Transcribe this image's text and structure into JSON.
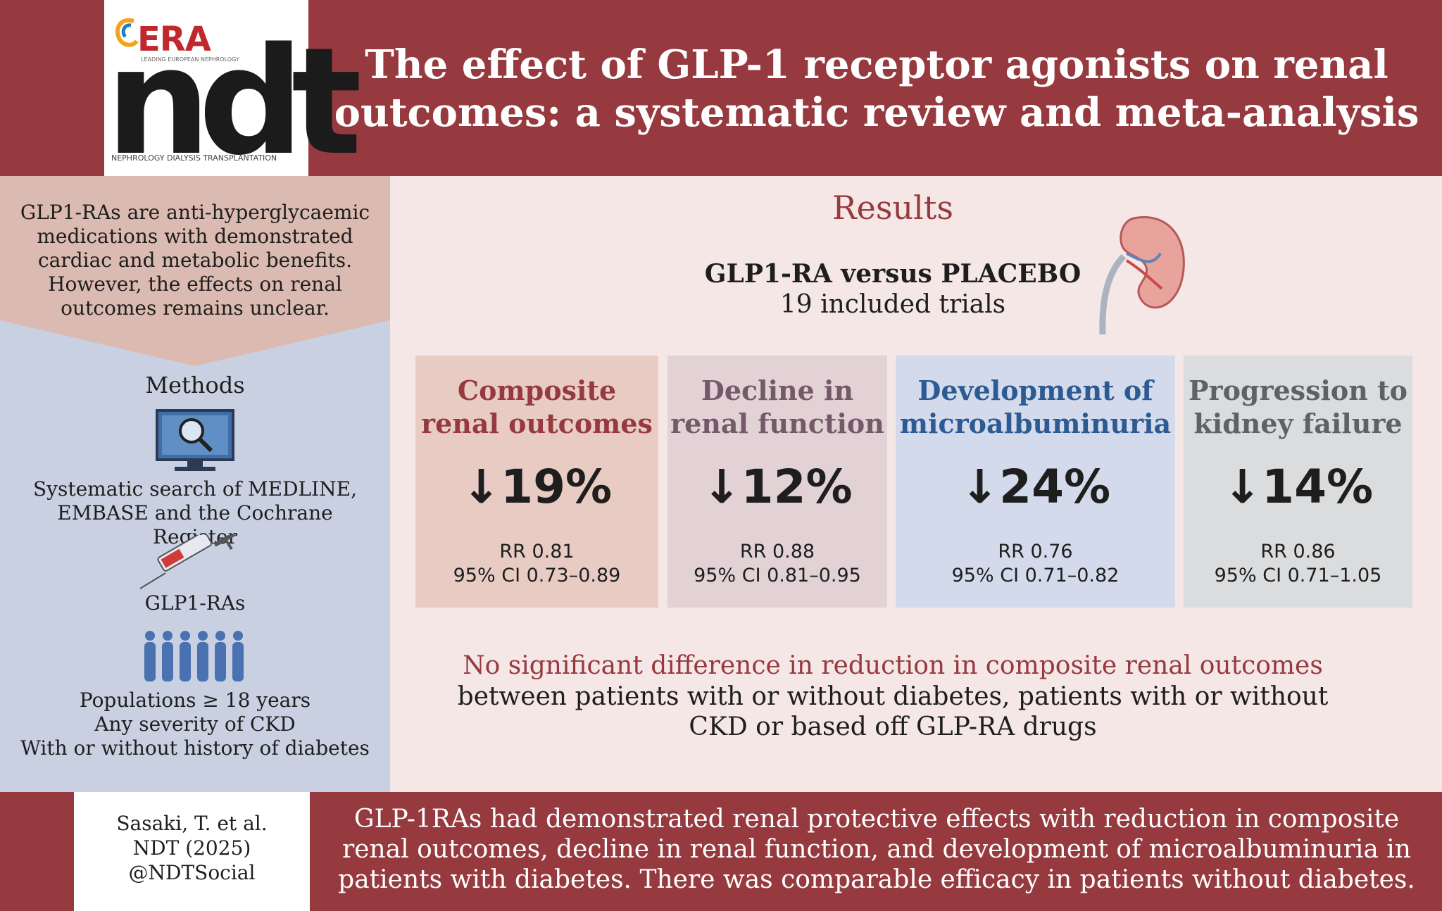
{
  "header": {
    "title": "The effect of GLP-1 receptor agonists on renal outcomes: a systematic review and meta-analysis",
    "logo": {
      "era": "ERA",
      "era_sub": "LEADING EUROPEAN NEPHROLOGY",
      "ndt": "ndt",
      "footer": "NEPHROLOGY DIALYSIS TRANSPLANTATION"
    }
  },
  "intro": "GLP1-RAs are anti-hyperglycaemic medications with demonstrated cardiac and metabolic benefits. However, the effects on renal outcomes remains unclear.",
  "methods": {
    "heading": "Methods",
    "search": "Systematic search of MEDLINE, EMBASE and the Cochrane Register",
    "drug": "GLP1-RAs",
    "population": [
      "Populations ≥ 18 years",
      "Any severity of CKD",
      "With or without history of diabetes"
    ]
  },
  "results": {
    "heading": "Results",
    "comparison": "GLP1-RA versus PLACEBO",
    "trials": "19 included trials",
    "outcomes": [
      {
        "title": "Composite renal outcomes",
        "reduction": "↓19%",
        "rr": "RR 0.81",
        "ci": "95% CI 0.73–0.89",
        "rr_value": 0.81
      },
      {
        "title": "Decline in renal function",
        "reduction": "↓12%",
        "rr": "RR 0.88",
        "ci": "95% CI 0.81–0.95",
        "rr_value": 0.88
      },
      {
        "title": "Development of microalbuminuria",
        "reduction": "↓24%",
        "rr": "RR 0.76",
        "ci": "95% CI 0.71–0.82",
        "rr_value": 0.76
      },
      {
        "title": "Progression to kidney failure",
        "reduction": "↓14%",
        "rr": "RR 0.86",
        "ci": "95% CI 0.71–1.05",
        "rr_value": 0.86
      }
    ],
    "no_sig_highlight": "No significant difference in reduction in composite renal outcomes",
    "no_sig_rest": "between patients with or without diabetes, patients with or without CKD or based off GLP-RA drugs"
  },
  "footer": {
    "citation": [
      "Sasaki, T. et al.",
      "NDT (2025)",
      "@NDTSocial"
    ],
    "conclusion": "GLP-1RAs had demonstrated renal protective effects with reduction in composite renal outcomes, decline in renal function, and development of microalbuminuria in patients with diabetes. There was comparable efficacy in patients without diabetes."
  },
  "colors": {
    "brand_red": "#963a3f",
    "intro_bg": "#dbbab1",
    "methods_bg": "#c9d0e2",
    "results_bg": "#f5e7e6"
  }
}
